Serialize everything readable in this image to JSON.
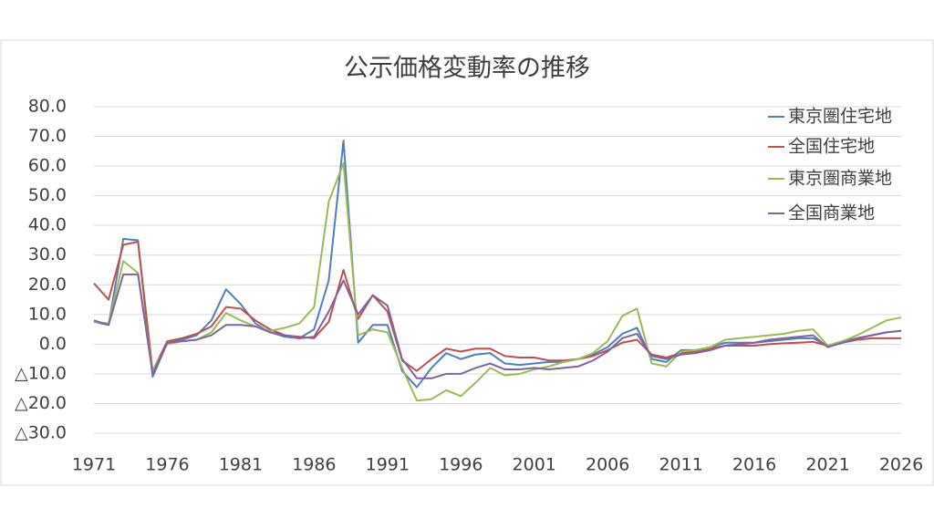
{
  "chart_data": {
    "type": "line",
    "title": "公示価格変動率の推移",
    "x": [
      1971,
      1972,
      1973,
      1974,
      1975,
      1976,
      1977,
      1978,
      1979,
      1980,
      1981,
      1982,
      1983,
      1984,
      1985,
      1986,
      1987,
      1988,
      1989,
      1990,
      1991,
      1992,
      1993,
      1994,
      1995,
      1996,
      1997,
      1998,
      1999,
      2000,
      2001,
      2002,
      2003,
      2004,
      2005,
      2006,
      2007,
      2008,
      2009,
      2010,
      2011,
      2012,
      2013,
      2014,
      2015,
      2016,
      2017,
      2018,
      2019,
      2020,
      2021,
      2022,
      2023,
      2024,
      2025,
      2026
    ],
    "series": [
      {
        "name": "東京圏住宅地",
        "color": "#4f7fbf",
        "values": [
          7.5,
          6.5,
          35.5,
          35,
          -11,
          0.5,
          1.5,
          3,
          8,
          18.5,
          13.5,
          7,
          4,
          2.5,
          2,
          5,
          21.5,
          68.6,
          0.5,
          6.5,
          6.5,
          -9,
          -14.5,
          -8,
          -3,
          -5,
          -3.5,
          -3,
          -6.5,
          -7,
          -6.5,
          -6,
          -6,
          -5,
          -3.5,
          -1,
          3.5,
          5.5,
          -5,
          -6,
          -2,
          -2,
          -1,
          0.5,
          0.5,
          0.5,
          1,
          1.5,
          2,
          2,
          -0.5,
          1,
          2,
          3,
          4,
          4.5
        ]
      },
      {
        "name": "全国住宅地",
        "color": "#c0504d",
        "values": [
          20.5,
          15,
          33.5,
          34.5,
          -9,
          1,
          2,
          3.5,
          6,
          12.5,
          12,
          8,
          5,
          3,
          2.5,
          2,
          7.5,
          25,
          8.5,
          16.5,
          11,
          -5.5,
          -9,
          -5,
          -1.5,
          -2.5,
          -1.5,
          -1.5,
          -4,
          -4.5,
          -4.5,
          -5.5,
          -5.5,
          -5,
          -4,
          -2,
          0.5,
          1.5,
          -3.5,
          -4.5,
          -3,
          -2.5,
          -1.5,
          -0.5,
          -0.5,
          -0.5,
          0,
          0.3,
          0.5,
          0.8,
          -0.5,
          0.5,
          1.5,
          2,
          2,
          2
        ]
      },
      {
        "name": "東京圏商業地",
        "color": "#9bbb59",
        "values": [
          7.5,
          7,
          28,
          24,
          -9,
          0,
          1,
          1.5,
          4,
          10.5,
          8,
          6,
          4.5,
          5.5,
          7,
          12.5,
          48,
          61,
          3,
          5,
          4,
          -8,
          -19,
          -18.5,
          -15.5,
          -17.5,
          -13,
          -8,
          -10.5,
          -10,
          -8.5,
          -7.5,
          -6,
          -5,
          -3,
          1,
          9.5,
          12,
          -6.5,
          -7.5,
          -2.5,
          -2,
          -1,
          1.5,
          2,
          2.5,
          3,
          3.5,
          4.5,
          5,
          -0.5,
          1,
          3,
          5.5,
          8,
          9
        ]
      },
      {
        "name": "全国商業地",
        "color": "#8064a2",
        "values": [
          8,
          6.5,
          23.5,
          23.5,
          -10,
          0.5,
          1,
          1.5,
          3,
          6.5,
          6.5,
          6,
          4,
          3,
          2,
          2.5,
          11,
          21.5,
          10,
          16.5,
          13,
          -5,
          -11.5,
          -11.5,
          -10,
          -10,
          -8,
          -6.5,
          -8.5,
          -8.5,
          -8,
          -8.5,
          -8,
          -7.5,
          -5.5,
          -2.5,
          2,
          3.5,
          -4,
          -5,
          -3.5,
          -3,
          -2,
          -0.5,
          0,
          0.5,
          1.5,
          2,
          2.5,
          3,
          -1,
          0.5,
          2,
          3,
          4,
          4.5
        ]
      }
    ],
    "xlim": [
      1971,
      2026
    ],
    "xticks": [
      1971,
      1976,
      1981,
      1986,
      1991,
      1996,
      2001,
      2006,
      2011,
      2016,
      2021,
      2026
    ],
    "ylim": [
      -30,
      80
    ],
    "yticks": [
      {
        "value": -30,
        "label": "△30.0"
      },
      {
        "value": -20,
        "label": "△20.0"
      },
      {
        "value": -10,
        "label": "△10.0"
      },
      {
        "value": 0,
        "label": "0.0"
      },
      {
        "value": 10,
        "label": "10.0"
      },
      {
        "value": 20,
        "label": "20.0"
      },
      {
        "value": 30,
        "label": "30.0"
      },
      {
        "value": 40,
        "label": "40.0"
      },
      {
        "value": 50,
        "label": "50.0"
      },
      {
        "value": 60,
        "label": "60.0"
      },
      {
        "value": 70,
        "label": "70.0"
      },
      {
        "value": 80,
        "label": "80.0"
      }
    ],
    "grid": true,
    "legend": "upper-right"
  }
}
